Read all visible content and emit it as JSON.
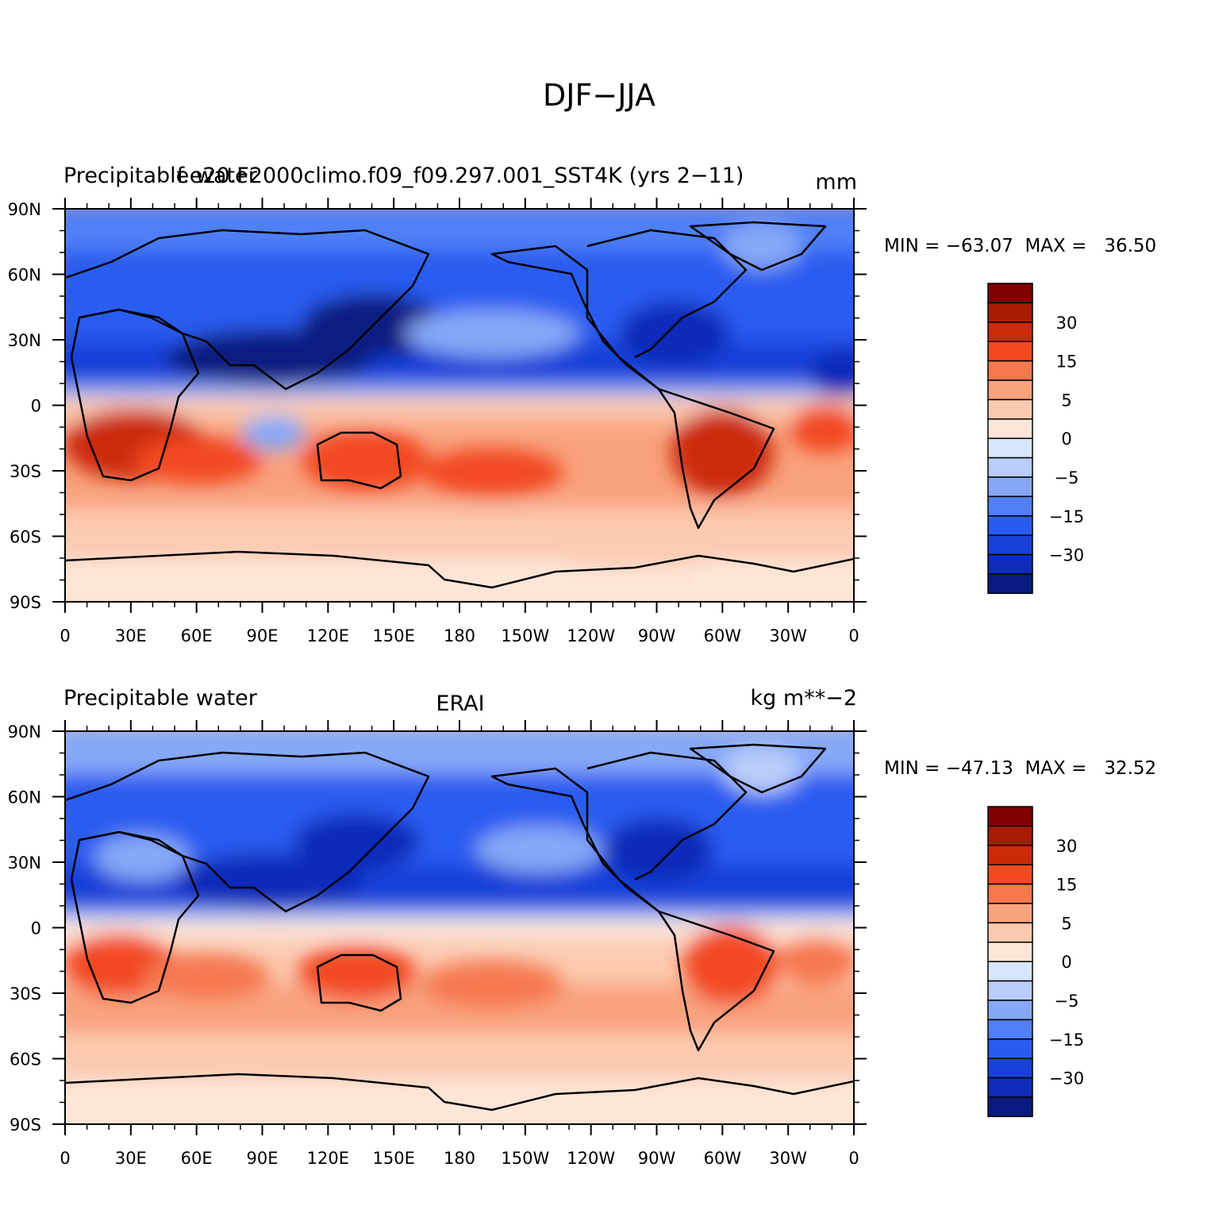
{
  "figure_title": "DJF−JJA",
  "palette": [
    "#0a1a80",
    "#0d2cb8",
    "#1840d8",
    "#2a5bf0",
    "#4f80f5",
    "#86a8f7",
    "#b8cdfa",
    "#d8e6fd",
    "#fde6d8",
    "#fccab0",
    "#f9a27e",
    "#f5784f",
    "#f24a20",
    "#cc2a08",
    "#a81b05",
    "#7f0000"
  ],
  "colorbar_labels": [
    "30",
    "15",
    "5",
    "0",
    "−5",
    "−15",
    "−30"
  ],
  "lon_labels": [
    "0",
    "30E",
    "60E",
    "90E",
    "120E",
    "150E",
    "180",
    "150W",
    "120W",
    "90W",
    "60W",
    "30W",
    "0"
  ],
  "lat_labels": [
    "90N",
    "60N",
    "30N",
    "0",
    "30S",
    "60S",
    "90S"
  ],
  "panels": [
    {
      "left_title": "Precipitable water",
      "center_title": "f.e20.F2000climo.f09_f09.297.001_SST4K (yrs 2−11)",
      "units": "mm",
      "min_max": "MIN = −63.07  MAX =   36.50"
    },
    {
      "left_title": "Precipitable water",
      "center_title": "ERAI",
      "units": "kg m**−2",
      "min_max": "MIN = −47.13  MAX =   32.52"
    }
  ]
}
